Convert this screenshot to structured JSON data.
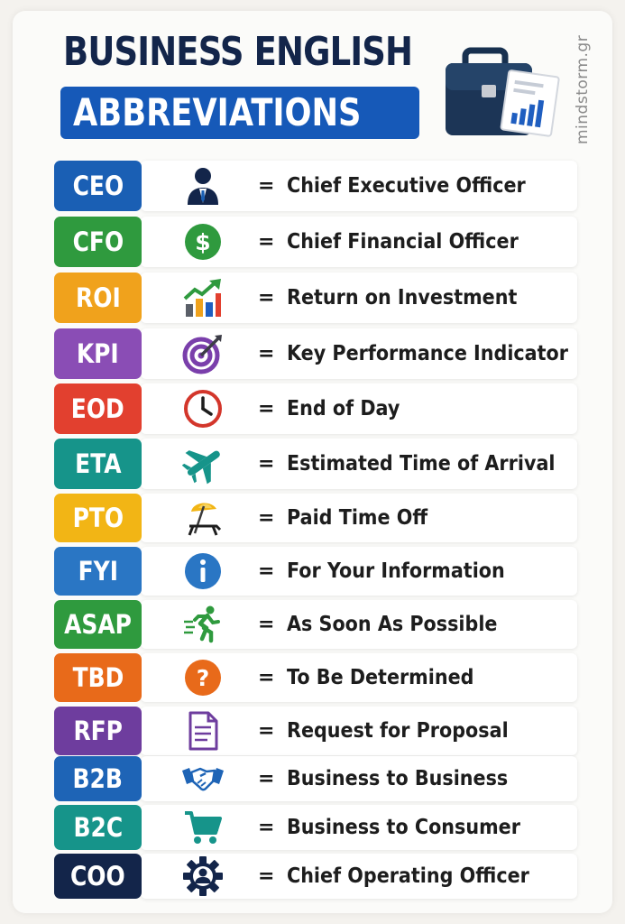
{
  "title": {
    "line1": "BUSINESS ENGLISH",
    "line2": "ABBREVIATIONS"
  },
  "watermark": "mindstorm.gr",
  "colors": {
    "title_dark": "#13254a",
    "title_pill": "#1659b8",
    "card_bg": "#fbfbf9"
  },
  "rows": [
    {
      "abbr": "CEO",
      "meaning": "Chief Executive Officer",
      "color": "#1a5fb4",
      "icon": "businessman-icon"
    },
    {
      "abbr": "CFO",
      "meaning": "Chief Financial Officer",
      "color": "#2f9a3e",
      "icon": "dollar-coin-icon"
    },
    {
      "abbr": "ROI",
      "meaning": "Return on Investment",
      "color": "#f0a21c",
      "icon": "growth-chart-icon"
    },
    {
      "abbr": "KPI",
      "meaning": "Key Performance Indicator",
      "color": "#8a4db5",
      "icon": "target-icon"
    },
    {
      "abbr": "EOD",
      "meaning": "End of Day",
      "color": "#e2402f",
      "icon": "clock-icon"
    },
    {
      "abbr": "ETA",
      "meaning": "Estimated Time of Arrival",
      "color": "#16948a",
      "icon": "airplane-icon"
    },
    {
      "abbr": "PTO",
      "meaning": "Paid Time Off",
      "color": "#f2b515",
      "icon": "beach-chair-icon"
    },
    {
      "abbr": "FYI",
      "meaning": "For Your Information",
      "color": "#2a76c4",
      "icon": "info-icon"
    },
    {
      "abbr": "ASAP",
      "meaning": "As Soon As Possible",
      "color": "#2f9a3e",
      "icon": "running-man-icon"
    },
    {
      "abbr": "TBD",
      "meaning": "To Be Determined",
      "color": "#e86a1a",
      "icon": "question-icon"
    },
    {
      "abbr": "RFP",
      "meaning": "Request for Proposal",
      "color": "#6e3d9e",
      "icon": "document-icon"
    },
    {
      "abbr": "B2B",
      "meaning": "Business to Business",
      "color": "#1e64b6",
      "icon": "handshake-icon"
    },
    {
      "abbr": "B2C",
      "meaning": "Business to Consumer",
      "color": "#16948a",
      "icon": "shopping-cart-icon"
    },
    {
      "abbr": "COO",
      "meaning": "Chief Operating Officer",
      "color": "#13254a",
      "icon": "gear-person-icon"
    }
  ]
}
